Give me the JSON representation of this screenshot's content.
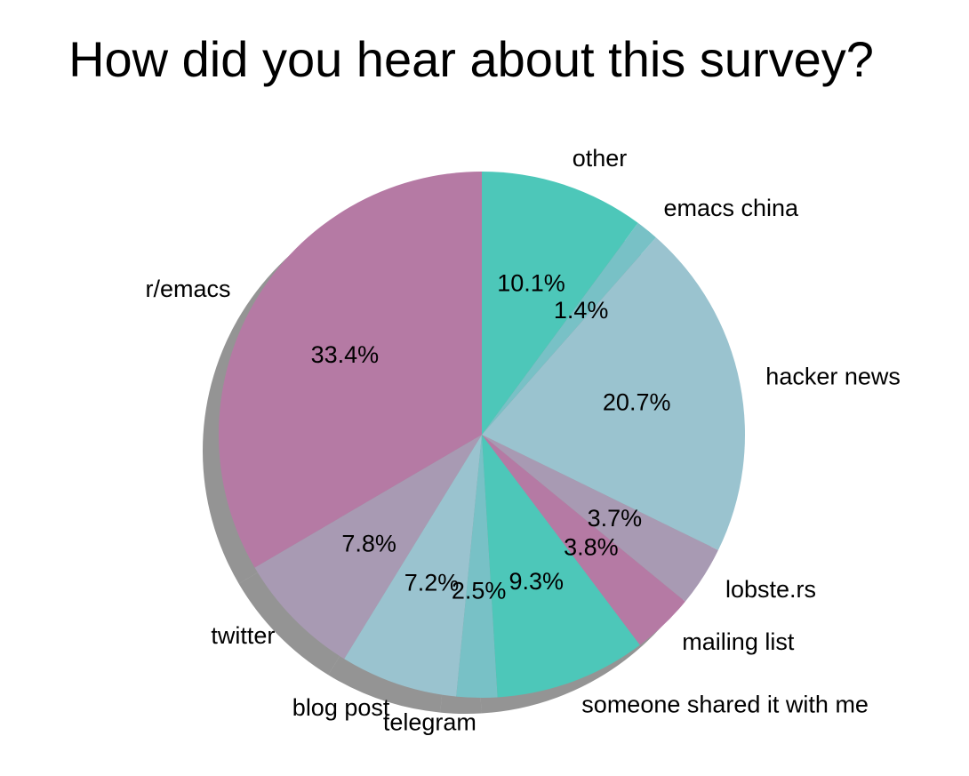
{
  "chart_data": {
    "type": "pie",
    "title": "How did you hear about this survey?",
    "start_angle_deg": 90,
    "direction": "counterclockwise",
    "shadow": true,
    "slices": [
      {
        "label": "r/emacs",
        "value": 33.4,
        "pct_label": "33.4%",
        "color": "#b57aa4"
      },
      {
        "label": "twitter",
        "value": 7.8,
        "pct_label": "7.8%",
        "color": "#a89ab3"
      },
      {
        "label": "blog post",
        "value": 7.2,
        "pct_label": "7.2%",
        "color": "#9ac3cf"
      },
      {
        "label": "telegram",
        "value": 2.5,
        "pct_label": "2.5%",
        "color": "#78c1c6"
      },
      {
        "label": "someone shared it with me",
        "value": 9.3,
        "pct_label": "9.3%",
        "color": "#4dc7b9"
      },
      {
        "label": "mailing list",
        "value": 3.8,
        "pct_label": "3.8%",
        "color": "#b57aa4"
      },
      {
        "label": "lobste.rs",
        "value": 3.7,
        "pct_label": "3.7%",
        "color": "#a89ab3"
      },
      {
        "label": "hacker news",
        "value": 20.7,
        "pct_label": "20.7%",
        "color": "#9ac3cf"
      },
      {
        "label": "emacs china",
        "value": 1.4,
        "pct_label": "1.4%",
        "color": "#78c1c6"
      },
      {
        "label": "other",
        "value": 10.1,
        "pct_label": "10.1%",
        "color": "#4dc7b9"
      }
    ]
  }
}
